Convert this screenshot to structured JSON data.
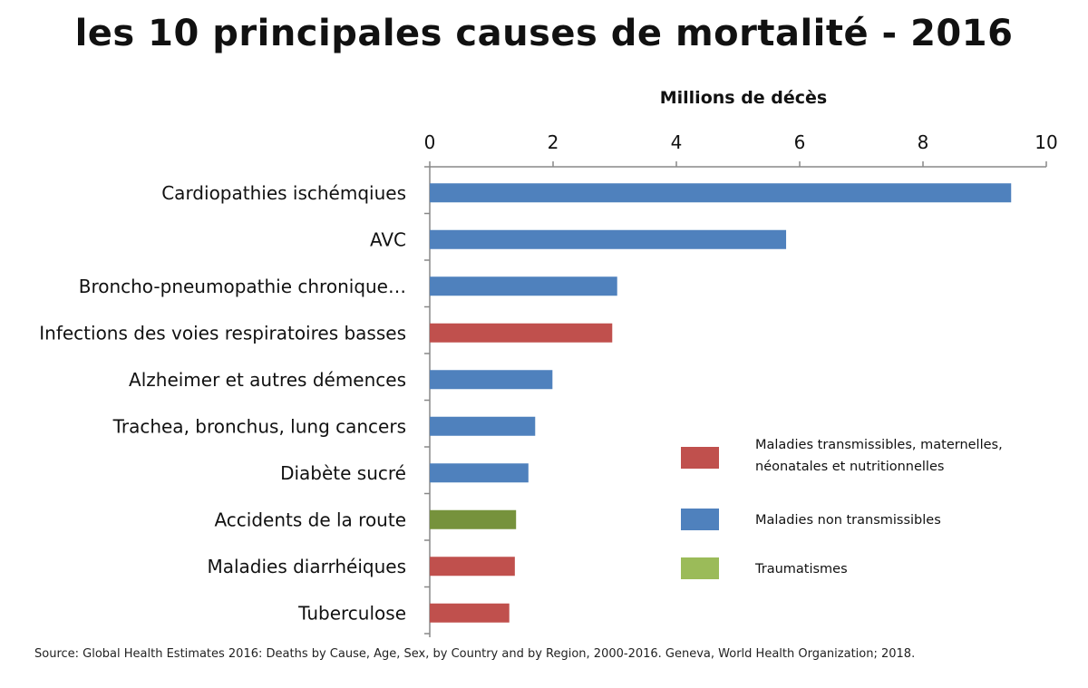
{
  "chart_data": {
    "type": "bar",
    "orientation": "horizontal",
    "title": "les 10 principales causes de mortalité - 2016",
    "xlabel": "Millions de décès",
    "ylabel": "",
    "xlim": [
      0,
      10
    ],
    "xticks": [
      "0",
      "2",
      "4",
      "6",
      "8",
      "10"
    ],
    "grid": false,
    "axis_position": "top",
    "legend_position": "right",
    "categories": [
      "Cardiopathies ischémqiues",
      "AVC",
      "Broncho-pneumopathie chronique…",
      "Infections des voies respiratoires basses",
      "Alzheimer et autres démences",
      "Trachea, bronchus, lung cancers",
      "Diabète sucré",
      "Accidents de la route",
      "Maladies diarrhéiques",
      "Tuberculose"
    ],
    "values": [
      9.43,
      5.78,
      3.04,
      2.96,
      1.99,
      1.71,
      1.6,
      1.4,
      1.38,
      1.29
    ],
    "groups": [
      "noncomm",
      "noncomm",
      "noncomm",
      "comm",
      "noncomm",
      "noncomm",
      "noncomm",
      "injury",
      "comm",
      "comm"
    ],
    "legend": [
      {
        "key": "comm",
        "lines": [
          "Maladies transmissibles, maternelles,",
          "néonatales et nutritionnelles"
        ],
        "color": "#c0504d"
      },
      {
        "key": "noncomm",
        "lines": [
          "Maladies non transmissibles"
        ],
        "color": "#4f81bd"
      },
      {
        "key": "injury",
        "lines": [
          "Traumatismes"
        ],
        "color": "#9bbb59"
      }
    ],
    "bar_colors": {
      "comm": "#c0504d",
      "noncomm": "#4f81bd",
      "injury": "#76923c"
    },
    "source": "Source: Global Health Estimates 2016: Deaths by Cause, Age, Sex, by Country and by Region, 2000-2016. Geneva, World Health Organization; 2018."
  }
}
